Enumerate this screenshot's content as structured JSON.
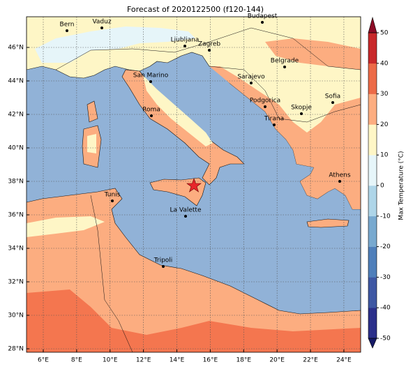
{
  "title": "Forecast of 2020122500 (f120-144)",
  "map": {
    "lon_ticks": [
      {
        "value": 6,
        "label": "6°E"
      },
      {
        "value": 8,
        "label": "8°E"
      },
      {
        "value": 10,
        "label": "10°E"
      },
      {
        "value": 12,
        "label": "12°E"
      },
      {
        "value": 14,
        "label": "14°E"
      },
      {
        "value": 16,
        "label": "16°E"
      },
      {
        "value": 18,
        "label": "18°E"
      },
      {
        "value": 20,
        "label": "20°E"
      },
      {
        "value": 22,
        "label": "22°E"
      },
      {
        "value": 24,
        "label": "24°E"
      }
    ],
    "lat_ticks": [
      {
        "value": 28,
        "label": "28°N"
      },
      {
        "value": 30,
        "label": "30°N"
      },
      {
        "value": 32,
        "label": "32°N"
      },
      {
        "value": 34,
        "label": "34°N"
      },
      {
        "value": 36,
        "label": "36°N"
      },
      {
        "value": 38,
        "label": "38°N"
      },
      {
        "value": 40,
        "label": "40°N"
      },
      {
        "value": 42,
        "label": "42°N"
      },
      {
        "value": 44,
        "label": "44°N"
      },
      {
        "value": 46,
        "label": "46°N"
      }
    ],
    "cities": [
      "Bern",
      "Vaduz",
      "Budapest",
      "Ljubljana",
      "Zagreb",
      "Belgrade",
      "San Marino",
      "Sarajevo",
      "Sofia",
      "Podgorica",
      "Skopje",
      "Roma",
      "Tirana",
      "Athens",
      "Tunis",
      "La Valette",
      "Tripoli"
    ]
  },
  "colorbar": {
    "label": "Max Temperature (°C)",
    "ticks": [
      -50,
      -40,
      -30,
      -20,
      -10,
      0,
      10,
      20,
      30,
      40,
      50
    ],
    "colors": [
      "#2b2f8a",
      "#3e57a3",
      "#4f7fba",
      "#78a9cf",
      "#aed5e8",
      "#e6f5f9",
      "#fef6c6",
      "#fcad80",
      "#ec6a47",
      "#c8282a"
    ],
    "extend_colors": [
      "#161a66",
      "#8c0b26"
    ]
  }
}
